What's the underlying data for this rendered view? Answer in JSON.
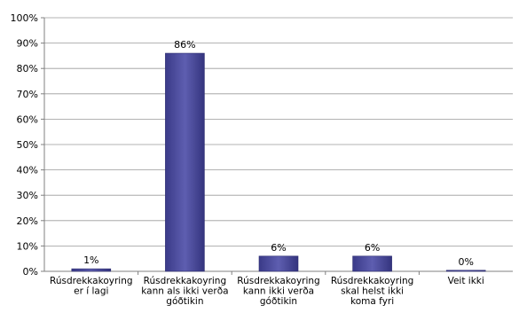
{
  "chart_data": {
    "type": "bar",
    "categories": [
      [
        "Rúsdrekkakoyring",
        "er í lagi"
      ],
      [
        "Rúsdrekkakoyring",
        "kann als ikki verða",
        "góðtikin"
      ],
      [
        "Rúsdrekkakoyring",
        "kann ikki verða",
        "góðtikin"
      ],
      [
        "Rúsdrekkakoyring",
        "skal helst ikki",
        "koma fyri"
      ],
      [
        "Veit ikki"
      ]
    ],
    "values": [
      1,
      86,
      6,
      6,
      0
    ],
    "data_labels": [
      "1%",
      "86%",
      "6%",
      "6%",
      "0%"
    ],
    "ylim": [
      0,
      100
    ],
    "yticks": [
      "0%",
      "10%",
      "20%",
      "30%",
      "40%",
      "50%",
      "60%",
      "70%",
      "80%",
      "90%",
      "100%"
    ],
    "grid": true,
    "bar_color": "#4a4a9c",
    "bar_edge_color": "#2c2c70"
  }
}
